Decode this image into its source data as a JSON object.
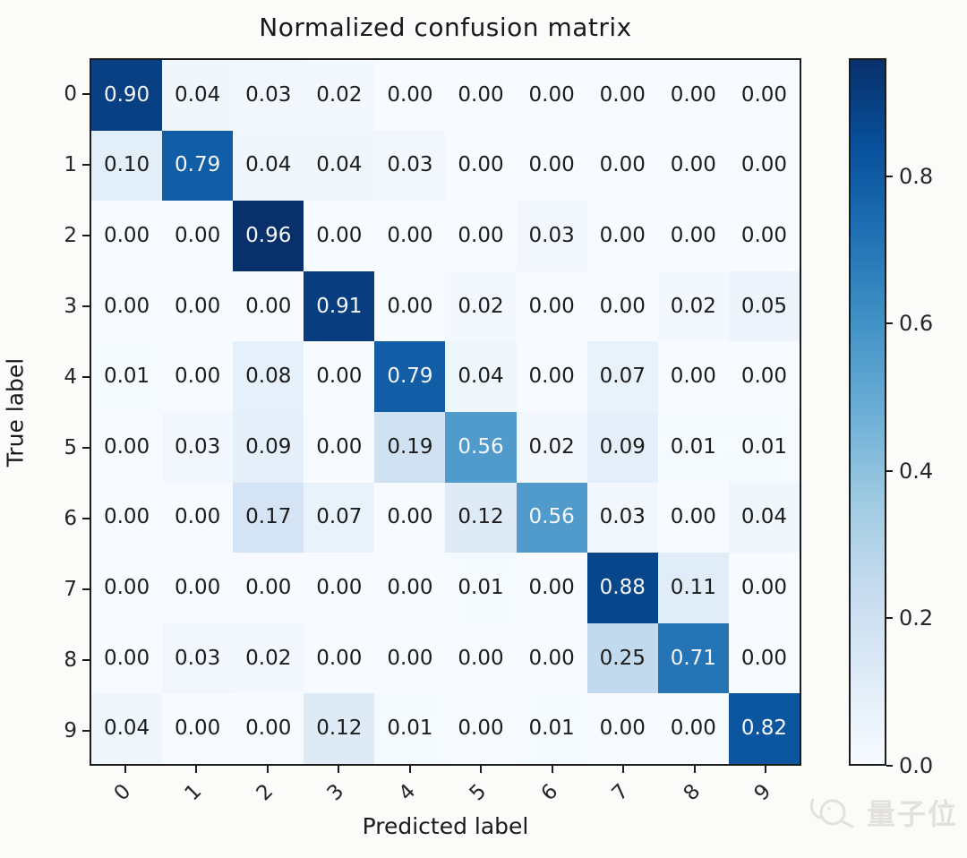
{
  "watermark": {
    "text": "量子位",
    "color": "#e3e1de"
  },
  "chart_data": {
    "type": "heatmap",
    "title": "Normalized confusion matrix",
    "xlabel": "Predicted label",
    "ylabel": "True label",
    "x_tick_labels": [
      "0",
      "1",
      "2",
      "3",
      "4",
      "5",
      "6",
      "7",
      "8",
      "9"
    ],
    "y_tick_labels": [
      "0",
      "1",
      "2",
      "3",
      "4",
      "5",
      "6",
      "7",
      "8",
      "9"
    ],
    "matrix": [
      [
        0.9,
        0.04,
        0.03,
        0.02,
        0.0,
        0.0,
        0.0,
        0.0,
        0.0,
        0.0
      ],
      [
        0.1,
        0.79,
        0.04,
        0.04,
        0.03,
        0.0,
        0.0,
        0.0,
        0.0,
        0.0
      ],
      [
        0.0,
        0.0,
        0.96,
        0.0,
        0.0,
        0.0,
        0.03,
        0.0,
        0.0,
        0.0
      ],
      [
        0.0,
        0.0,
        0.0,
        0.91,
        0.0,
        0.02,
        0.0,
        0.0,
        0.02,
        0.05
      ],
      [
        0.01,
        0.0,
        0.08,
        0.0,
        0.79,
        0.04,
        0.0,
        0.07,
        0.0,
        0.0
      ],
      [
        0.0,
        0.03,
        0.09,
        0.0,
        0.19,
        0.56,
        0.02,
        0.09,
        0.01,
        0.01
      ],
      [
        0.0,
        0.0,
        0.17,
        0.07,
        0.0,
        0.12,
        0.56,
        0.03,
        0.0,
        0.04
      ],
      [
        0.0,
        0.0,
        0.0,
        0.0,
        0.0,
        0.01,
        0.0,
        0.88,
        0.11,
        0.0
      ],
      [
        0.0,
        0.03,
        0.02,
        0.0,
        0.0,
        0.0,
        0.0,
        0.25,
        0.71,
        0.0
      ],
      [
        0.04,
        0.0,
        0.0,
        0.12,
        0.01,
        0.0,
        0.01,
        0.0,
        0.0,
        0.82
      ]
    ],
    "value_decimals": 2,
    "vmin": 0.0,
    "vmax": 0.96,
    "colorbar_ticks": [
      0.0,
      0.2,
      0.4,
      0.6,
      0.8
    ],
    "colorbar_tick_decimals": 1,
    "colormap": {
      "name": "Blues",
      "stops": [
        "#f7fbff",
        "#deebf7",
        "#c6dbef",
        "#9ecae1",
        "#6baed6",
        "#4292c6",
        "#2171b5",
        "#08519c",
        "#08306b"
      ]
    },
    "cell_text_color_dark": "#1c1c1c",
    "cell_text_color_light": "#f5f7fa",
    "text_color_threshold": 0.48,
    "legend_position": "right-colorbar",
    "grid": false
  }
}
